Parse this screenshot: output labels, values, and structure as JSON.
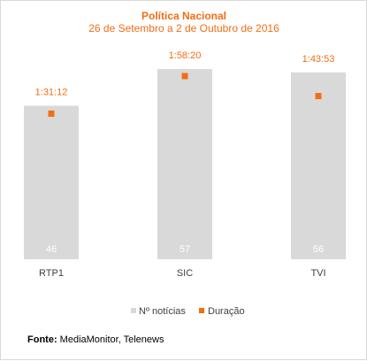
{
  "chart_data": {
    "type": "bar",
    "title": "Política Nacional",
    "subtitle": "26 de Setembro a 2 de Outubro de 2016",
    "categories": [
      "RTP1",
      "SIC",
      "TVI"
    ],
    "series": [
      {
        "name": "Nº notícias",
        "type": "bar",
        "values": [
          46,
          57,
          56
        ],
        "color": "#d9d9d9"
      },
      {
        "name": "Duração",
        "type": "scatter",
        "values": [
          "1:31:12",
          "1:58:20",
          "1:43:53"
        ],
        "seconds": [
          5472,
          7100,
          6233
        ],
        "color": "#f26d14"
      }
    ],
    "grid": false,
    "legend": "bottom"
  },
  "colors": {
    "accent": "#f26d14",
    "bar": "#d9d9d9",
    "bar_label": "#ffffff",
    "category_text": "#404040"
  },
  "source": {
    "label": "Fonte:",
    "text": "MediaMonitor, Telenews"
  }
}
